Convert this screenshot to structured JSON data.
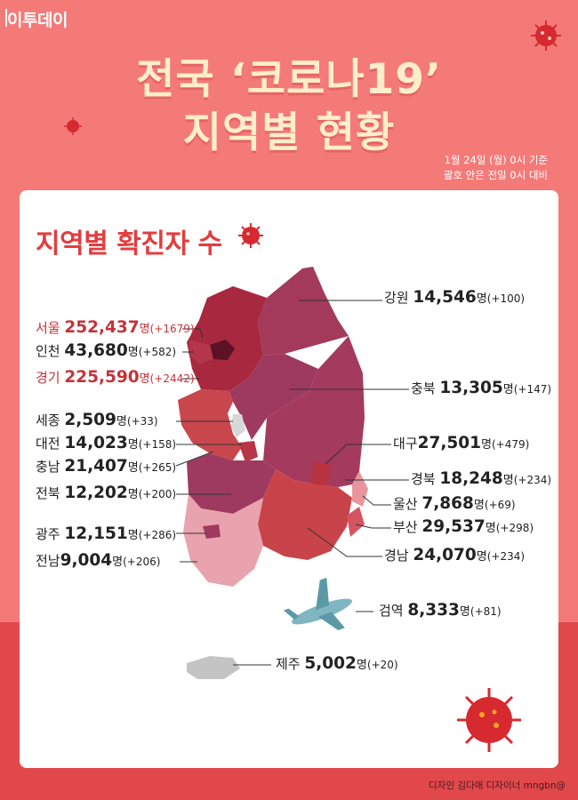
{
  "brand": "이투데이",
  "title_line1": "전국 ‘코로나19’",
  "title_line2": "지역별 현황",
  "date_note": "1월 24일 (월) 0시 기준",
  "compare_note": "괄호 안은 전일 0시 대비",
  "section_title": "지역별 확진자 수",
  "credit": "디자인 김다애 디자이너 mngbn@",
  "unit": "명",
  "colors": {
    "background": "#f47a78",
    "panel": "#ffffff",
    "accent_red": "#e23d3f",
    "title": "#ffeec9"
  },
  "regions": [
    {
      "id": "gangwon",
      "name": "강원",
      "count": "14,546",
      "change": "(+100)"
    },
    {
      "id": "seoul",
      "name": "서울",
      "count": "252,437",
      "change": "(+1679)",
      "highlight": true
    },
    {
      "id": "incheon",
      "name": "인천",
      "count": "43,680",
      "change": "(+582)"
    },
    {
      "id": "gyeonggi",
      "name": "경기",
      "count": "225,590",
      "change": "(+2442)",
      "highlight": true
    },
    {
      "id": "chungbuk",
      "name": "충북",
      "count": "13,305",
      "change": "(+147)"
    },
    {
      "id": "sejong",
      "name": "세종",
      "count": "2,509",
      "change": "(+33)"
    },
    {
      "id": "daejeon",
      "name": "대전",
      "count": "14,023",
      "change": "(+158)"
    },
    {
      "id": "daegu",
      "name": "대구",
      "count": "27,501",
      "change": "(+479)"
    },
    {
      "id": "chungnam",
      "name": "충남",
      "count": "21,407",
      "change": "(+265)"
    },
    {
      "id": "gyeongbuk",
      "name": "경북",
      "count": "18,248",
      "change": "(+234)"
    },
    {
      "id": "jeonbuk",
      "name": "전북",
      "count": "12,202",
      "change": "(+200)"
    },
    {
      "id": "ulsan",
      "name": "울산",
      "count": "7,868",
      "change": "(+69)"
    },
    {
      "id": "busan",
      "name": "부산",
      "count": "29,537",
      "change": "(+298)"
    },
    {
      "id": "gwangju",
      "name": "광주",
      "count": "12,151",
      "change": "(+286)"
    },
    {
      "id": "jeonnam",
      "name": "전남",
      "count": "9,004",
      "change": "(+206)"
    },
    {
      "id": "gyeongnam",
      "name": "경남",
      "count": "24,070",
      "change": "(+234)"
    },
    {
      "id": "quarantine",
      "name": "검역",
      "count": "8,333",
      "change": "(+81)"
    },
    {
      "id": "jeju",
      "name": "제주",
      "count": "5,002",
      "change": "(+20)"
    }
  ]
}
